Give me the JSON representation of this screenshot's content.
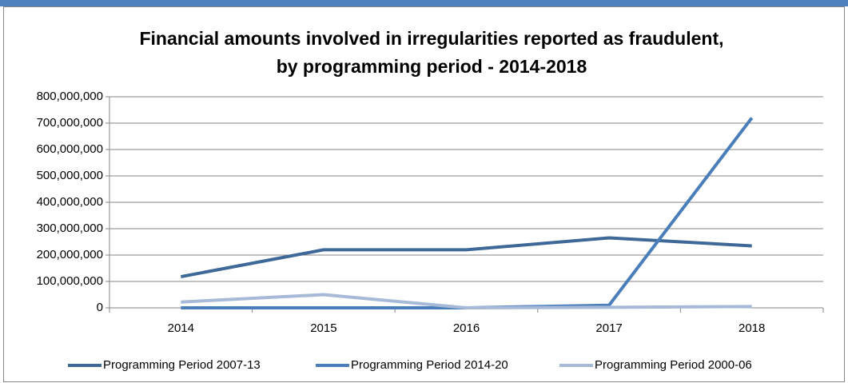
{
  "chart_data": {
    "type": "line",
    "title": [
      "Financial amounts involved in irregularities reported as fraudulent,",
      "by programming period - 2014-2018"
    ],
    "categories": [
      "2014",
      "2015",
      "2016",
      "2017",
      "2018"
    ],
    "series": [
      {
        "name": "Programming Period 2007-13",
        "color": "#3d6898",
        "values": [
          118000000,
          220000000,
          220000000,
          265000000,
          235000000
        ]
      },
      {
        "name": "Programming Period 2014-20",
        "color": "#4a7ebb",
        "values": [
          0,
          0,
          0,
          10000000,
          720000000
        ]
      },
      {
        "name": "Programming Period 2000-06",
        "color": "#a6b9d7",
        "values": [
          22000000,
          50000000,
          0,
          2000000,
          5000000
        ]
      }
    ],
    "ylim": [
      0,
      800000000
    ],
    "yticks": [
      0,
      {
        "value": 100000000,
        "label": "100,000,000"
      },
      {
        "value": 200000000,
        "label": "200,000,000"
      },
      {
        "value": 300000000,
        "label": "300,000,000"
      },
      {
        "value": 400000000,
        "label": "400,000,000"
      },
      {
        "value": 500000000,
        "label": "500,000,000"
      },
      {
        "value": 600000000,
        "label": "600,000,000"
      },
      {
        "value": 700000000,
        "label": "700,000,000"
      },
      {
        "value": 800000000,
        "label": "800,000,000"
      }
    ],
    "grid": true,
    "legend": "bottom"
  }
}
